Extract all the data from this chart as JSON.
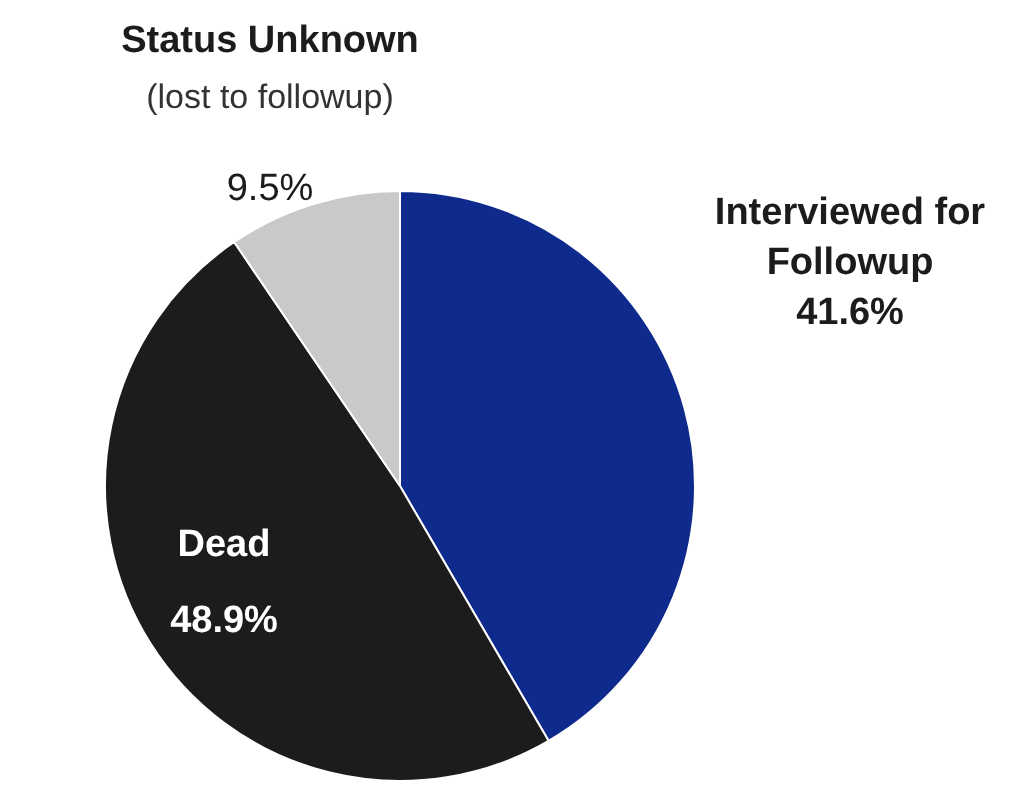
{
  "chart_data": {
    "type": "pie",
    "categories": [
      "Interviewed for Followup",
      "Dead",
      "Status Unknown"
    ],
    "values": [
      41.6,
      48.9,
      9.5
    ],
    "colors": [
      "#0d2a8c",
      "#1c1c1c",
      "#c9c9c9"
    ],
    "value_labels": [
      "41.6%",
      "48.9%",
      "9.5%"
    ],
    "annotations": [
      "(lost to followup)"
    ],
    "legend": false
  }
}
